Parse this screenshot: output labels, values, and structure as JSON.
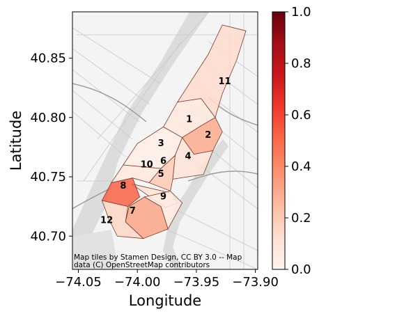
{
  "chart_data": {
    "type": "choropleth",
    "xlabel": "Longitude",
    "ylabel": "Latitude",
    "xlim": [
      -74.055,
      -73.898
    ],
    "ylim": [
      40.672,
      40.889
    ],
    "x_ticks": [
      "−74.05",
      "−74.00",
      "−73.95",
      "−73.90"
    ],
    "x_tick_values": [
      -74.05,
      -74.0,
      -73.95,
      -73.9
    ],
    "y_ticks": [
      "40.70",
      "40.75",
      "40.80",
      "40.85"
    ],
    "y_tick_values": [
      40.7,
      40.75,
      40.8,
      40.85
    ],
    "attribution": [
      "Map tiles by Stamen Design, CC BY 3.0 -- Map",
      "data (C) OpenStreetMap contributors"
    ],
    "colorbar": {
      "colormap": "Reds",
      "range": [
        0.0,
        1.0
      ],
      "ticks": [
        "0.0",
        "0.2",
        "0.4",
        "0.6",
        "0.8",
        "1.0"
      ],
      "tick_values": [
        0.0,
        0.2,
        0.4,
        0.6,
        0.8,
        1.0
      ]
    },
    "zones": [
      {
        "label": "1",
        "value": 0.08,
        "polygon": [
          [
            -73.978,
            40.792
          ],
          [
            -73.966,
            40.813
          ],
          [
            -73.946,
            40.816
          ],
          [
            -73.934,
            40.8
          ],
          [
            -73.946,
            40.793
          ],
          [
            -73.962,
            40.783
          ]
        ],
        "label_pos": [
          -73.956,
          40.798
        ]
      },
      {
        "label": "2",
        "value": 0.3,
        "polygon": [
          [
            -73.962,
            40.783
          ],
          [
            -73.946,
            40.793
          ],
          [
            -73.934,
            40.8
          ],
          [
            -73.928,
            40.788
          ],
          [
            -73.936,
            40.772
          ],
          [
            -73.952,
            40.769
          ]
        ],
        "label_pos": [
          -73.94,
          40.785
        ]
      },
      {
        "label": "3",
        "value": 0.04,
        "polygon": [
          [
            -74.012,
            40.76
          ],
          [
            -74.0,
            40.778
          ],
          [
            -73.978,
            40.792
          ],
          [
            -73.962,
            40.783
          ],
          [
            -73.968,
            40.768
          ],
          [
            -73.98,
            40.757
          ]
        ],
        "label_pos": [
          -73.98,
          40.778
        ]
      },
      {
        "label": "4",
        "value": 0.1,
        "polygon": [
          [
            -73.968,
            40.768
          ],
          [
            -73.962,
            40.783
          ],
          [
            -73.952,
            40.769
          ],
          [
            -73.936,
            40.772
          ],
          [
            -73.944,
            40.752
          ],
          [
            -73.97,
            40.748
          ]
        ],
        "label_pos": [
          -73.957,
          40.767
        ]
      },
      {
        "label": "5",
        "value": 0.1,
        "polygon": [
          [
            -74.005,
            40.744
          ],
          [
            -73.97,
            40.736
          ],
          [
            -73.966,
            40.728
          ],
          [
            -73.976,
            40.724
          ],
          [
            -73.992,
            40.735
          ]
        ],
        "label_pos": [
          -73.98,
          40.752
        ]
      },
      {
        "label": "6",
        "value": 0.2,
        "polygon": [
          [
            -73.98,
            40.757
          ],
          [
            -73.968,
            40.768
          ],
          [
            -73.97,
            40.748
          ],
          [
            -73.972,
            40.738
          ],
          [
            -73.99,
            40.745
          ]
        ],
        "label_pos": [
          -73.978,
          40.763
        ]
      },
      {
        "label": "7",
        "value": 0.32,
        "polygon": [
          [
            -74.007,
            40.725
          ],
          [
            -73.994,
            40.733
          ],
          [
            -73.98,
            40.725
          ],
          [
            -73.974,
            40.706
          ],
          [
            -73.995,
            40.698
          ],
          [
            -74.01,
            40.712
          ]
        ],
        "label_pos": [
          -74.004,
          40.721
        ]
      },
      {
        "label": "8",
        "value": 0.52,
        "polygon": [
          [
            -74.022,
            40.745
          ],
          [
            -74.004,
            40.749
          ],
          [
            -73.998,
            40.733
          ],
          [
            -74.008,
            40.725
          ],
          [
            -74.03,
            40.73
          ]
        ],
        "label_pos": [
          -74.012,
          40.742
        ]
      },
      {
        "label": "9",
        "value": 0.06,
        "polygon": [
          [
            -73.994,
            40.733
          ],
          [
            -73.972,
            40.738
          ],
          [
            -73.962,
            40.728
          ],
          [
            -73.974,
            40.706
          ],
          [
            -73.98,
            40.725
          ]
        ],
        "label_pos": [
          -73.978,
          40.733
        ]
      },
      {
        "label": "10",
        "value": 0.08,
        "polygon": [
          [
            -74.012,
            40.76
          ],
          [
            -73.98,
            40.757
          ],
          [
            -73.99,
            40.745
          ],
          [
            -74.004,
            40.749
          ],
          [
            -74.022,
            40.745
          ]
        ],
        "label_pos": [
          -73.992,
          40.76
        ]
      },
      {
        "label": "11",
        "value": 0.14,
        "polygon": [
          [
            -73.946,
            40.816
          ],
          [
            -73.966,
            40.813
          ],
          [
            -73.94,
            40.853
          ],
          [
            -73.928,
            40.878
          ],
          [
            -73.908,
            40.873
          ],
          [
            -73.916,
            40.848
          ],
          [
            -73.928,
            40.82
          ],
          [
            -73.934,
            40.8
          ]
        ],
        "label_pos": [
          -73.926,
          40.83
        ]
      },
      {
        "label": "12",
        "value": 0.16,
        "polygon": [
          [
            -74.03,
            40.73
          ],
          [
            -74.008,
            40.725
          ],
          [
            -74.01,
            40.712
          ],
          [
            -73.995,
            40.698
          ],
          [
            -74.017,
            40.7
          ],
          [
            -74.024,
            40.714
          ]
        ],
        "label_pos": [
          -74.026,
          40.713
        ]
      }
    ]
  }
}
